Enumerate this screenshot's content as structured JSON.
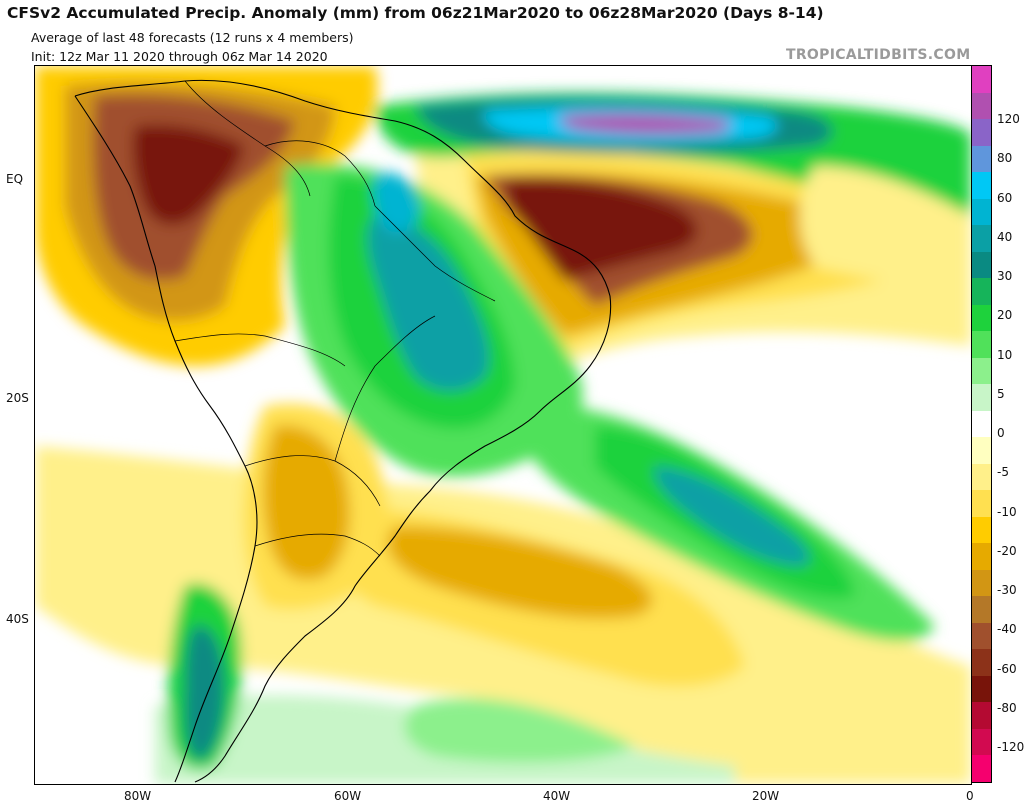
{
  "header": {
    "title": "CFSv2 Accumulated Precip. Anomaly (mm) from 06z21Mar2020 to 06z28Mar2020 (Days 8-14)",
    "subtitle": "Average of last 48 forecasts (12 runs x 4 members)",
    "init": "Init: 12z Mar 11 2020 through 06z Mar 14 2020",
    "watermark": "TROPICALTIDBITS.COM"
  },
  "map": {
    "region": "South America & South Atlantic",
    "lat_labels": [
      "EQ",
      "20S",
      "40S"
    ],
    "lon_labels": [
      "80W",
      "60W",
      "40W",
      "20W",
      "0"
    ]
  },
  "colorbar": {
    "labels": [
      "120",
      "80",
      "60",
      "40",
      "30",
      "20",
      "10",
      "5",
      "0",
      "-5",
      "-10",
      "-20",
      "-30",
      "-40",
      "-60",
      "-80",
      "-120"
    ],
    "colors": [
      "#e040c0",
      "#b050b0",
      "#8a64c8",
      "#5f96dc",
      "#00c8f5",
      "#00b4d2",
      "#0ba0a5",
      "#0a8a82",
      "#16b45a",
      "#1ed23c",
      "#50e15a",
      "#8cf08c",
      "#c8f5c8",
      "#ffffff",
      "#ffffc0",
      "#fff08a",
      "#ffe050",
      "#ffcc00",
      "#e6aa00",
      "#d29614",
      "#b47828",
      "#a0502d",
      "#8c3219",
      "#78140a",
      "#b40a32",
      "#d20a50",
      "#f5006e"
    ]
  }
}
